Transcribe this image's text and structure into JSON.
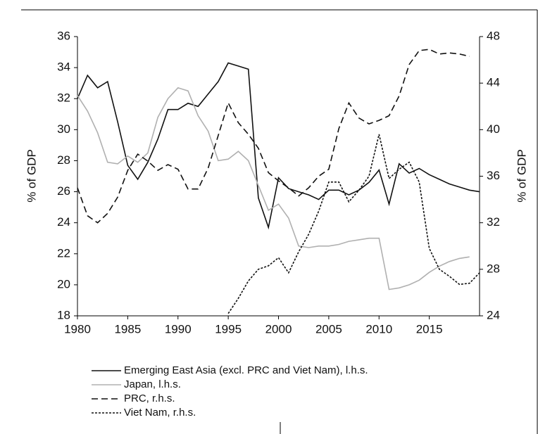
{
  "chart_data": {
    "type": "line",
    "y_label": "% of GDP",
    "y2_label": "% of GDP",
    "x": [
      1980,
      1981,
      1982,
      1983,
      1984,
      1985,
      1986,
      1987,
      1988,
      1989,
      1990,
      1991,
      1992,
      1993,
      1994,
      1995,
      1996,
      1997,
      1998,
      1999,
      2000,
      2001,
      2002,
      2003,
      2004,
      2005,
      2006,
      2007,
      2008,
      2009,
      2010,
      2011,
      2012,
      2013,
      2014,
      2015,
      2016,
      2017,
      2018,
      2019,
      2020
    ],
    "xlim": [
      1980,
      2020
    ],
    "xticks": [
      1980,
      1985,
      1990,
      1995,
      2000,
      2005,
      2010,
      2015
    ],
    "ylim": [
      18,
      36
    ],
    "yticks": [
      18,
      20,
      22,
      24,
      26,
      28,
      30,
      32,
      34,
      36
    ],
    "y2lim": [
      24,
      48
    ],
    "y2ticks": [
      24,
      28,
      32,
      36,
      40,
      44,
      48
    ],
    "grid": false,
    "series": [
      {
        "name": "Emerging East Asia (excl. PRC and Viet Nam), l.h.s.",
        "color": "#111111",
        "dash": "solid",
        "values": [
          32.0,
          33.5,
          32.7,
          33.1,
          30.5,
          27.7,
          26.8,
          27.9,
          29.4,
          31.3,
          31.3,
          31.7,
          31.5,
          32.3,
          33.1,
          34.3,
          34.1,
          33.9,
          25.6,
          23.7,
          26.9,
          26.2,
          26.0,
          25.8,
          25.5,
          26.1,
          26.1,
          25.8,
          26.1,
          26.6,
          27.4,
          25.2,
          27.8,
          27.2,
          27.5,
          27.1,
          26.8,
          26.5,
          26.3,
          26.1,
          26.0
        ]
      },
      {
        "name": "Japan, l.h.s.",
        "color": "#b0b0b0",
        "dash": "solid",
        "values": [
          32.2,
          31.2,
          29.8,
          27.9,
          27.8,
          28.3,
          27.9,
          28.5,
          30.8,
          32.0,
          32.7,
          32.5,
          30.9,
          29.9,
          28.0,
          28.1,
          28.6,
          28.0,
          26.4,
          24.8,
          25.2,
          24.3,
          22.5,
          22.4,
          22.5,
          22.5,
          22.6,
          22.8,
          22.9,
          23.0,
          23.0,
          19.7,
          19.8,
          20.0,
          20.3,
          20.8,
          21.2,
          21.5,
          21.7,
          21.8,
          null
        ]
      },
      {
        "name": "PRC, r.h.s.",
        "color": "#111111",
        "dash": "dashed",
        "axis": "y2",
        "values": [
          35.0,
          32.6,
          32.0,
          32.8,
          34.2,
          36.5,
          37.9,
          37.3,
          36.5,
          37.0,
          36.6,
          34.9,
          34.9,
          36.7,
          39.5,
          42.3,
          40.6,
          39.6,
          38.4,
          36.3,
          35.6,
          35.0,
          34.3,
          35.0,
          36.0,
          36.6,
          40.1,
          42.3,
          41.0,
          40.5,
          40.8,
          41.2,
          42.9,
          45.6,
          46.8,
          46.9,
          46.5,
          46.6,
          46.5,
          46.3,
          null
        ]
      },
      {
        "name": "Viet Nam, r.h.s.",
        "color": "#111111",
        "dash": "dotted",
        "axis": "y2",
        "values": [
          null,
          null,
          null,
          null,
          null,
          null,
          null,
          null,
          null,
          null,
          null,
          null,
          null,
          null,
          null,
          24.2,
          25.5,
          27.0,
          28.0,
          28.3,
          29.0,
          27.7,
          29.5,
          31.0,
          33.0,
          35.5,
          35.5,
          33.8,
          34.8,
          36.0,
          39.6,
          35.8,
          36.6,
          37.2,
          35.5,
          29.8,
          28.0,
          27.4,
          26.7,
          26.8,
          27.7
        ]
      }
    ]
  }
}
